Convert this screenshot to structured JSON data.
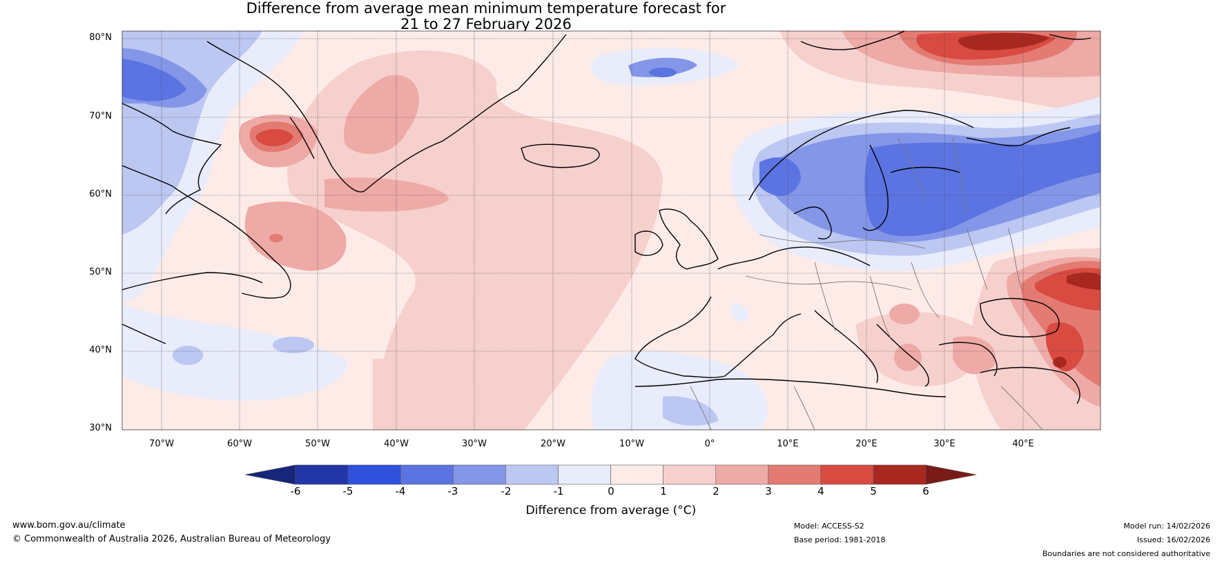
{
  "title": {
    "line1": "Difference from average mean minimum temperature forecast for",
    "line2": "21 to 27 February 2026"
  },
  "map": {
    "region": "North Atlantic and Europe",
    "lat_labels": [
      "80°N",
      "70°N",
      "60°N",
      "50°N",
      "40°N",
      "30°N"
    ],
    "lon_labels": [
      "70°W",
      "60°W",
      "50°W",
      "40°W",
      "30°W",
      "20°W",
      "10°W",
      "0°",
      "10°E",
      "20°E",
      "30°E",
      "40°E"
    ],
    "lat_range": [
      30,
      81
    ],
    "lon_range": [
      -75,
      50
    ]
  },
  "colorbar": {
    "label": "Difference from average (°C)",
    "ticks": [
      "-6",
      "-5",
      "-4",
      "-3",
      "-2",
      "-1",
      "0",
      "1",
      "2",
      "3",
      "4",
      "5",
      "6"
    ],
    "colors": [
      "#16267a",
      "#2236a8",
      "#3050de",
      "#5b74e2",
      "#8496e8",
      "#bcc7f2",
      "#e8ecfb",
      "#fdebe8",
      "#f6d0cd",
      "#eeaaa6",
      "#e37b73",
      "#d94a41",
      "#a8281f",
      "#7a1a16"
    ]
  },
  "footer": {
    "website": "www.bom.gov.au/climate",
    "copyright": "© Commonwealth of Australia 2026, Australian Bureau of Meteorology",
    "model": "Model: ACCESS-S2",
    "base_period": "Base period: 1981-2018",
    "model_run": "Model run: 14/02/2026",
    "issued": "Issued: 16/02/2026",
    "disclaimer": "Boundaries are not considered authoritative"
  }
}
